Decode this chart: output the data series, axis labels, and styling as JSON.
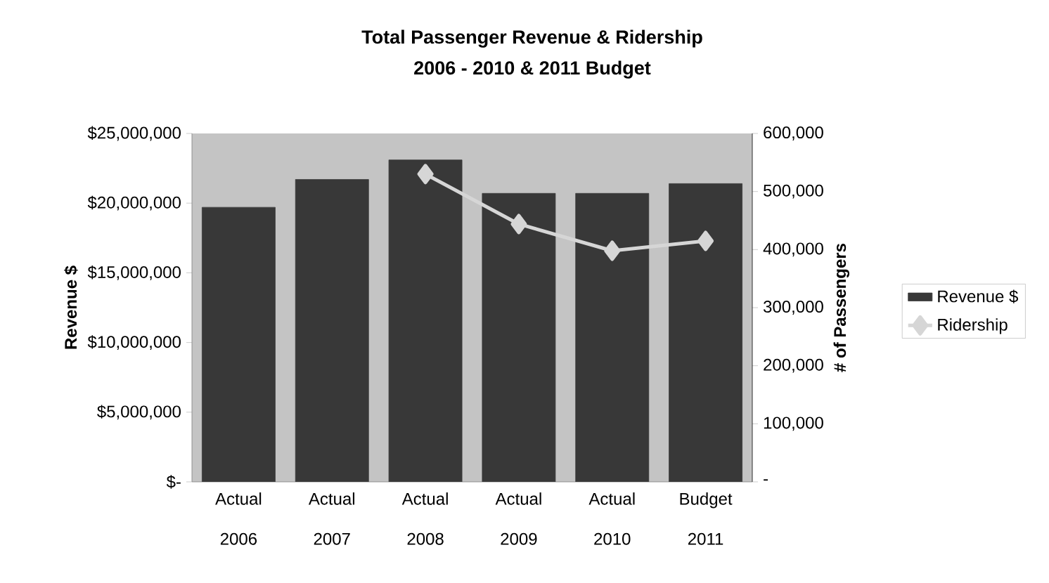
{
  "chart_data": {
    "type": "bar",
    "title": "Total Passenger Revenue & Ridership",
    "subtitle": "2006 - 2010 & 2011 Budget",
    "ylabel": "Revenue $",
    "y2label": "# of Passengers",
    "categories": [
      "Actual 2006",
      "Actual 2007",
      "Actual 2008",
      "Actual 2009",
      "Actual 2010",
      "Budget 2011"
    ],
    "series": [
      {
        "name": "Revenue $",
        "color": "#383838",
        "values": [
          19700000,
          21700000,
          23100000,
          20700000,
          20700000,
          21400000
        ]
      },
      {
        "name": "Ridership",
        "type": "line",
        "axis": "y2",
        "color": "#d6d6d6",
        "marker": "diamond",
        "values": [
          null,
          null,
          530000,
          444000,
          398000,
          415000
        ]
      }
    ],
    "ylim": [
      0,
      25000000
    ],
    "yticks": [
      {
        "value": 0,
        "label": "$-"
      },
      {
        "value": 5000000,
        "label": "$5,000,000"
      },
      {
        "value": 10000000,
        "label": "$10,000,000"
      },
      {
        "value": 15000000,
        "label": "$15,000,000"
      },
      {
        "value": 20000000,
        "label": "$20,000,000"
      },
      {
        "value": 25000000,
        "label": "$25,000,000"
      }
    ],
    "y2lim": [
      0,
      600000
    ],
    "y2ticks": [
      {
        "value": 0,
        "label": "-"
      },
      {
        "value": 100000,
        "label": "100,000"
      },
      {
        "value": 200000,
        "label": "200,000"
      },
      {
        "value": 300000,
        "label": "300,000"
      },
      {
        "value": 400000,
        "label": "400,000"
      },
      {
        "value": 500000,
        "label": "500,000"
      },
      {
        "value": 600000,
        "label": "600,000"
      }
    ],
    "legend": "right",
    "grid": false
  }
}
